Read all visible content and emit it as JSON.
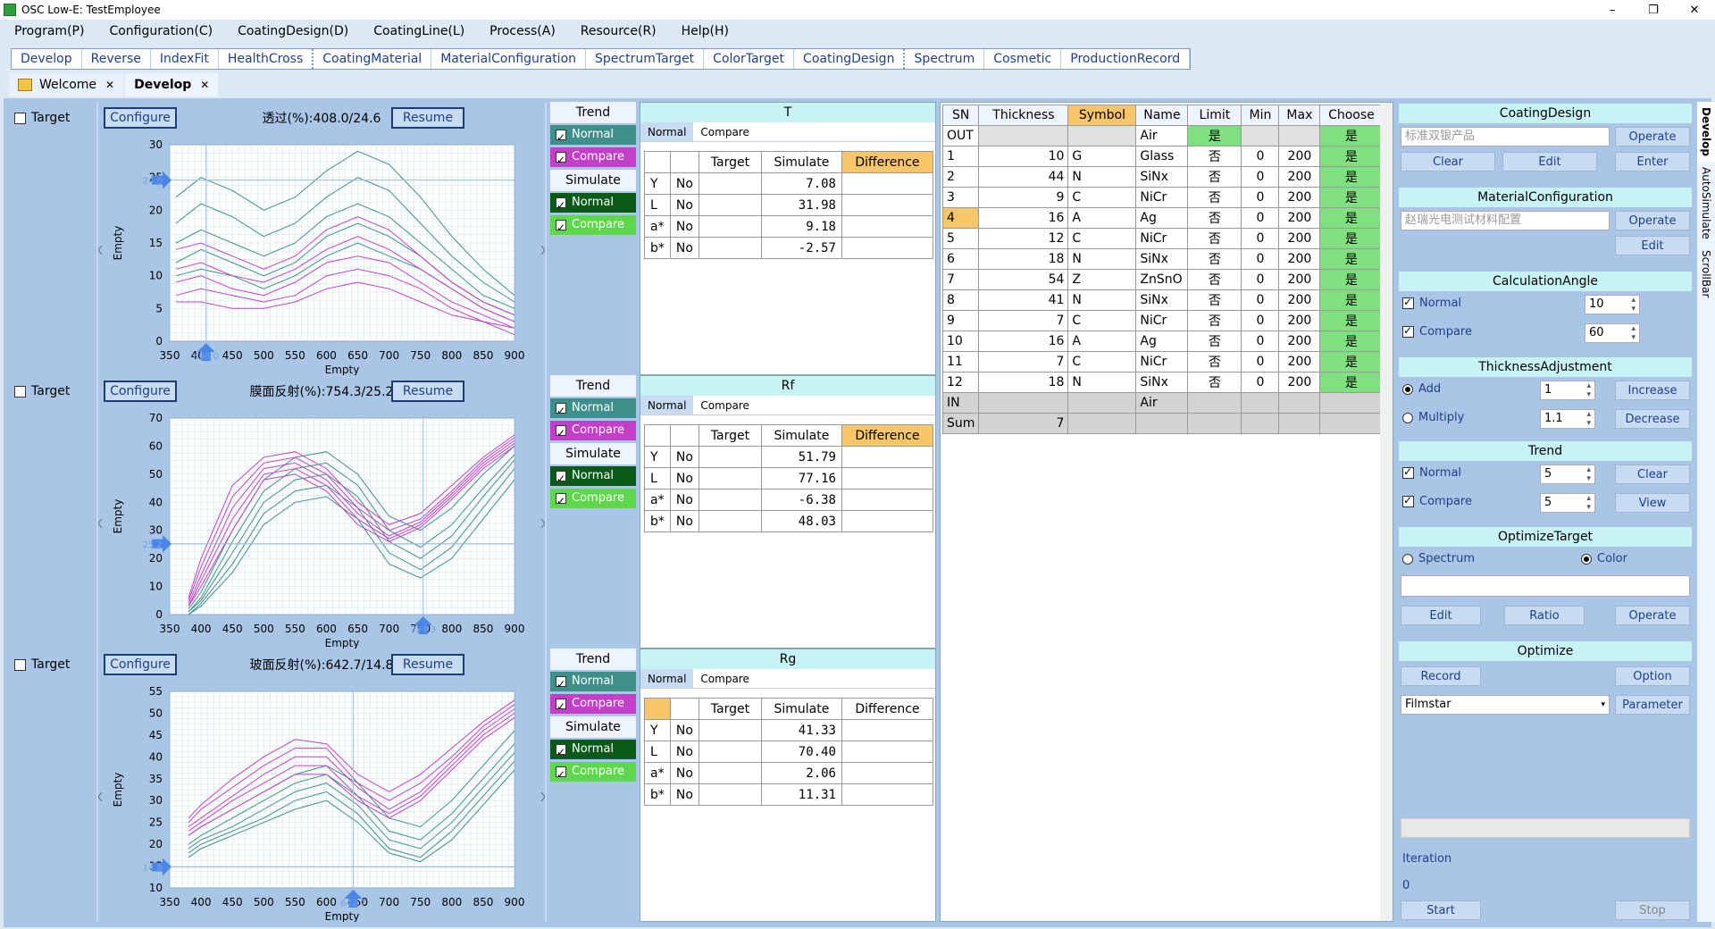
{
  "app": {
    "title": "OSC Low-E: TestEmployee"
  },
  "menu": [
    "Program(P)",
    "Configuration(C)",
    "CoatingDesign(D)",
    "CoatingLine(L)",
    "Process(A)",
    "Resource(R)",
    "Help(H)"
  ],
  "modules": [
    "Develop",
    "Reverse",
    "IndexFit",
    "HealthCross",
    "CoatingMaterial",
    "MaterialConfiguration",
    "SpectrumTarget",
    "ColorTarget",
    "CoatingDesign",
    "Spectrum",
    "Cosmetic",
    "ProductionRecord"
  ],
  "doctabs": [
    {
      "label": "Welcome"
    },
    {
      "label": "Develop"
    }
  ],
  "common": {
    "target": "Target",
    "configure": "Configure",
    "resume": "Resume",
    "trend": "Trend",
    "normal": "Normal",
    "compare": "Compare",
    "simulate": "Simulate",
    "empty": "Empty",
    "col_target": "Target",
    "col_simulate": "Simulate",
    "col_difference": "Difference",
    "no": "No"
  },
  "rows": [
    {
      "plot_title": "透过(%):408.0/24.6",
      "metric_title": "T",
      "values": [
        {
          "k": "Y",
          "v": "7.08"
        },
        {
          "k": "L",
          "v": "31.98"
        },
        {
          "k": "a*",
          "v": "9.18"
        },
        {
          "k": "b*",
          "v": "-2.57"
        }
      ],
      "cursor_x_label": "408.0",
      "cursor_y_label": "24.6"
    },
    {
      "plot_title": "膜面反射(%):754.3/25.2",
      "metric_title": "Rf",
      "values": [
        {
          "k": "Y",
          "v": "51.79"
        },
        {
          "k": "L",
          "v": "77.16"
        },
        {
          "k": "a*",
          "v": "-6.38"
        },
        {
          "k": "b*",
          "v": "48.03"
        }
      ],
      "cursor_x_label": "754.3",
      "cursor_y_label": "25.2"
    },
    {
      "plot_title": "玻面反射(%):642.7/14.8",
      "metric_title": "Rg",
      "values": [
        {
          "k": "Y",
          "v": "41.33"
        },
        {
          "k": "L",
          "v": "70.40"
        },
        {
          "k": "a*",
          "v": "2.06"
        },
        {
          "k": "b*",
          "v": "11.31"
        }
      ],
      "cursor_x_label": "642.7",
      "cursor_y_label": "14.8"
    }
  ],
  "layers": {
    "headers": [
      "SN",
      "Thickness",
      "Symbol",
      "Name",
      "Limit",
      "Min",
      "Max",
      "Choose"
    ],
    "out": {
      "sn": "OUT",
      "name": "Air",
      "limit": "是",
      "choose": "是"
    },
    "items": [
      {
        "sn": "1",
        "t": "10",
        "s": "G",
        "n": "Glass",
        "l": "否",
        "min": "0",
        "max": "200",
        "c": "是"
      },
      {
        "sn": "2",
        "t": "44",
        "s": "N",
        "n": "SiNx",
        "l": "否",
        "min": "0",
        "max": "200",
        "c": "是"
      },
      {
        "sn": "3",
        "t": "9",
        "s": "C",
        "n": "NiCr",
        "l": "否",
        "min": "0",
        "max": "200",
        "c": "是"
      },
      {
        "sn": "4",
        "t": "16",
        "s": "A",
        "n": "Ag",
        "l": "否",
        "min": "0",
        "max": "200",
        "c": "是"
      },
      {
        "sn": "5",
        "t": "12",
        "s": "C",
        "n": "NiCr",
        "l": "否",
        "min": "0",
        "max": "200",
        "c": "是"
      },
      {
        "sn": "6",
        "t": "18",
        "s": "N",
        "n": "SiNx",
        "l": "否",
        "min": "0",
        "max": "200",
        "c": "是"
      },
      {
        "sn": "7",
        "t": "54",
        "s": "Z",
        "n": "ZnSnO",
        "l": "否",
        "min": "0",
        "max": "200",
        "c": "是"
      },
      {
        "sn": "8",
        "t": "41",
        "s": "N",
        "n": "SiNx",
        "l": "否",
        "min": "0",
        "max": "200",
        "c": "是"
      },
      {
        "sn": "9",
        "t": "7",
        "s": "C",
        "n": "NiCr",
        "l": "否",
        "min": "0",
        "max": "200",
        "c": "是"
      },
      {
        "sn": "10",
        "t": "16",
        "s": "A",
        "n": "Ag",
        "l": "否",
        "min": "0",
        "max": "200",
        "c": "是"
      },
      {
        "sn": "11",
        "t": "7",
        "s": "C",
        "n": "NiCr",
        "l": "否",
        "min": "0",
        "max": "200",
        "c": "是"
      },
      {
        "sn": "12",
        "t": "18",
        "s": "N",
        "n": "SiNx",
        "l": "否",
        "min": "0",
        "max": "200",
        "c": "是"
      }
    ],
    "in": {
      "sn": "IN",
      "name": "Air"
    },
    "sum": {
      "label": "Sum",
      "value": "7"
    }
  },
  "right": {
    "coating_design": {
      "title": "CoatingDesign",
      "field": "标准双银产品",
      "operate": "Operate",
      "clear": "Clear",
      "edit": "Edit",
      "enter": "Enter"
    },
    "material_config": {
      "title": "MaterialConfiguration",
      "field": "赵瑞光电测试材料配置",
      "operate": "Operate",
      "edit": "Edit"
    },
    "calc_angle": {
      "title": "CalculationAngle",
      "normal": "Normal",
      "normal_val": "10",
      "compare": "Compare",
      "compare_val": "60"
    },
    "thickness": {
      "title": "ThicknessAdjustment",
      "add": "Add",
      "add_val": "1",
      "increase": "Increase",
      "multiply": "Multiply",
      "mul_val": "1.1",
      "decrease": "Decrease"
    },
    "trend": {
      "title": "Trend",
      "normal": "Normal",
      "normal_val": "5",
      "clear": "Clear",
      "compare": "Compare",
      "compare_val": "5",
      "view": "View"
    },
    "optimize_target": {
      "title": "OptimizeTarget",
      "spectrum": "Spectrum",
      "color": "Color",
      "edit": "Edit",
      "ratio": "Ratio",
      "operate": "Operate"
    },
    "optimize": {
      "title": "Optimize",
      "record": "Record",
      "option": "Option",
      "engine": "Filmstar",
      "parameter": "Parameter",
      "iteration_label": "Iteration",
      "iteration_val": "0",
      "start": "Start",
      "stop": "Stop"
    }
  },
  "sidetabs": [
    "Develop",
    "AutoSimulate",
    "ScrollBar"
  ],
  "colors": {
    "teal": "#3f8f8a",
    "magenta": "#c43fc8",
    "darkgreen": "#0b5a1a",
    "lime": "#5ed84a",
    "orange": "#f7c66a",
    "cyan": "#c7f3f5"
  },
  "chart_data": [
    {
      "type": "line",
      "xlim": [
        350,
        900
      ],
      "ylim": [
        0,
        30
      ],
      "xticks": [
        "350",
        "400",
        "450",
        "500",
        "550",
        "600",
        "650",
        "700",
        "750",
        "800",
        "850",
        "900"
      ],
      "yticks": [
        "0",
        "5",
        "10",
        "15",
        "20",
        "25",
        "30"
      ],
      "xlabel": "Empty",
      "ylabel": "Empty",
      "x": [
        360,
        400,
        450,
        500,
        550,
        600,
        650,
        700,
        750,
        800,
        850,
        900
      ],
      "series": [
        {
          "color": "#3f8f8a",
          "values": [
            22,
            25,
            23,
            20,
            22,
            26,
            29,
            27,
            22,
            16,
            11,
            7
          ]
        },
        {
          "color": "#3f8f8a",
          "values": [
            18,
            21,
            19,
            16,
            18,
            22,
            25,
            23,
            18,
            13,
            9,
            6
          ]
        },
        {
          "color": "#3f8f8a",
          "values": [
            15,
            17,
            15,
            13,
            15,
            19,
            21,
            19,
            15,
            11,
            7,
            5
          ]
        },
        {
          "color": "#3f8f8a",
          "values": [
            12,
            14,
            12,
            10,
            12,
            16,
            18,
            16,
            13,
            9,
            6,
            4
          ]
        },
        {
          "color": "#3f8f8a",
          "values": [
            10,
            11,
            10,
            8,
            10,
            13,
            15,
            13,
            11,
            8,
            5,
            3
          ]
        },
        {
          "color": "#c43fc8",
          "values": [
            14,
            15,
            13,
            11,
            13,
            17,
            19,
            17,
            13,
            9,
            6,
            4
          ]
        },
        {
          "color": "#c43fc8",
          "values": [
            11,
            12,
            10,
            9,
            11,
            14,
            16,
            14,
            11,
            8,
            5,
            3
          ]
        },
        {
          "color": "#c43fc8",
          "values": [
            9,
            10,
            8,
            7,
            9,
            12,
            13,
            12,
            9,
            6,
            4,
            2
          ]
        },
        {
          "color": "#c43fc8",
          "values": [
            7,
            8,
            7,
            6,
            7,
            10,
            11,
            10,
            8,
            5,
            3,
            2
          ]
        },
        {
          "color": "#c43fc8",
          "values": [
            6,
            6,
            5,
            5,
            6,
            8,
            9,
            8,
            6,
            4,
            3,
            1
          ]
        }
      ]
    },
    {
      "type": "line",
      "xlim": [
        350,
        900
      ],
      "ylim": [
        0,
        70
      ],
      "xticks": [
        "350",
        "400",
        "450",
        "500",
        "550",
        "600",
        "650",
        "700",
        "750",
        "800",
        "850",
        "900"
      ],
      "yticks": [
        "0",
        "10",
        "20",
        "30",
        "40",
        "50",
        "60",
        "70"
      ],
      "xlabel": "Empty",
      "ylabel": "Empty",
      "x": [
        380,
        400,
        450,
        500,
        550,
        600,
        650,
        700,
        750,
        800,
        850,
        900
      ],
      "series": [
        {
          "color": "#3f8f8a",
          "values": [
            2,
            8,
            30,
            48,
            56,
            58,
            50,
            35,
            30,
            38,
            50,
            60
          ]
        },
        {
          "color": "#3f8f8a",
          "values": [
            1,
            6,
            26,
            44,
            52,
            54,
            46,
            30,
            24,
            32,
            45,
            57
          ]
        },
        {
          "color": "#3f8f8a",
          "values": [
            1,
            5,
            22,
            40,
            48,
            50,
            42,
            26,
            20,
            28,
            42,
            55
          ]
        },
        {
          "color": "#3f8f8a",
          "values": [
            0,
            4,
            18,
            36,
            44,
            46,
            38,
            22,
            16,
            24,
            38,
            52
          ]
        },
        {
          "color": "#3f8f8a",
          "values": [
            0,
            3,
            15,
            32,
            40,
            42,
            34,
            18,
            13,
            20,
            34,
            48
          ]
        },
        {
          "color": "#c43fc8",
          "values": [
            6,
            20,
            46,
            56,
            58,
            52,
            40,
            32,
            36,
            46,
            56,
            64
          ]
        },
        {
          "color": "#c43fc8",
          "values": [
            5,
            17,
            42,
            54,
            56,
            50,
            38,
            30,
            34,
            44,
            55,
            63
          ]
        },
        {
          "color": "#c43fc8",
          "values": [
            4,
            14,
            38,
            52,
            54,
            48,
            36,
            28,
            33,
            43,
            54,
            62
          ]
        },
        {
          "color": "#c43fc8",
          "values": [
            3,
            12,
            34,
            50,
            52,
            46,
            34,
            27,
            32,
            42,
            53,
            61
          ]
        },
        {
          "color": "#c43fc8",
          "values": [
            3,
            10,
            30,
            48,
            50,
            44,
            32,
            26,
            31,
            41,
            52,
            60
          ]
        }
      ]
    },
    {
      "type": "line",
      "xlim": [
        350,
        900
      ],
      "ylim": [
        10,
        55
      ],
      "xticks": [
        "350",
        "400",
        "450",
        "500",
        "550",
        "600",
        "650",
        "700",
        "750",
        "800",
        "850",
        "900"
      ],
      "yticks": [
        "10",
        "15",
        "20",
        "25",
        "30",
        "35",
        "40",
        "45",
        "50",
        "55"
      ],
      "xlabel": "Empty",
      "ylabel": "Empty",
      "x": [
        380,
        400,
        450,
        500,
        550,
        600,
        650,
        700,
        750,
        800,
        850,
        900
      ],
      "series": [
        {
          "color": "#3f8f8a",
          "values": [
            22,
            24,
            28,
            32,
            36,
            38,
            34,
            26,
            24,
            30,
            38,
            46
          ]
        },
        {
          "color": "#3f8f8a",
          "values": [
            20,
            22,
            26,
            30,
            34,
            36,
            31,
            23,
            21,
            27,
            35,
            43
          ]
        },
        {
          "color": "#3f8f8a",
          "values": [
            19,
            21,
            24,
            28,
            32,
            34,
            29,
            21,
            19,
            25,
            33,
            41
          ]
        },
        {
          "color": "#3f8f8a",
          "values": [
            18,
            20,
            23,
            26,
            30,
            32,
            27,
            19,
            17,
            23,
            31,
            39
          ]
        },
        {
          "color": "#3f8f8a",
          "values": [
            17,
            19,
            22,
            25,
            28,
            30,
            25,
            18,
            16,
            21,
            29,
            37
          ]
        },
        {
          "color": "#c43fc8",
          "values": [
            26,
            29,
            35,
            40,
            44,
            43,
            36,
            32,
            36,
            42,
            48,
            53
          ]
        },
        {
          "color": "#c43fc8",
          "values": [
            25,
            28,
            33,
            38,
            42,
            42,
            34,
            30,
            34,
            40,
            47,
            52
          ]
        },
        {
          "color": "#c43fc8",
          "values": [
            24,
            26,
            31,
            36,
            40,
            40,
            33,
            28,
            32,
            39,
            46,
            51
          ]
        },
        {
          "color": "#c43fc8",
          "values": [
            23,
            25,
            30,
            34,
            38,
            38,
            31,
            27,
            31,
            38,
            45,
            50
          ]
        },
        {
          "color": "#c43fc8",
          "values": [
            22,
            24,
            28,
            32,
            36,
            36,
            30,
            26,
            30,
            37,
            44,
            49
          ]
        }
      ]
    }
  ]
}
